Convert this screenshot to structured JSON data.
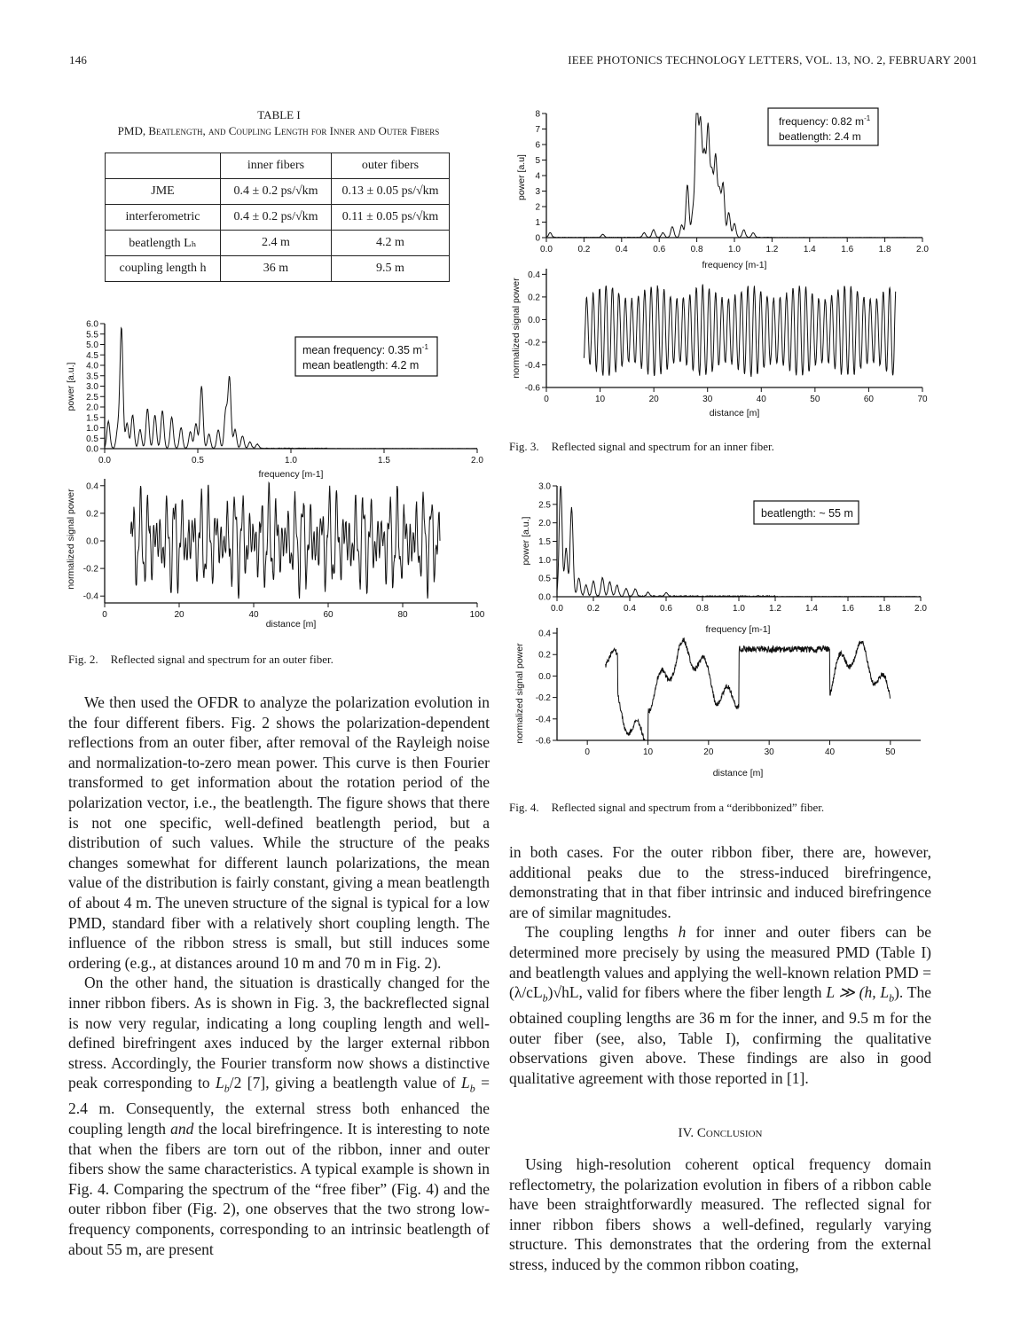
{
  "header": {
    "page_number": "146",
    "journal": "IEEE PHOTONICS TECHNOLOGY LETTERS, VOL. 13, NO. 2, FEBRUARY 2001"
  },
  "table1": {
    "label": "TABLE I",
    "caption": "PMD, Beatlength, and Coupling Length for Inner and Outer Fibers",
    "col_headers": [
      "",
      "inner fibers",
      "outer fibers"
    ],
    "rows": [
      [
        "JME",
        "0.4 ± 0.2 ps/√km",
        "0.13 ± 0.05 ps/√km"
      ],
      [
        "interferometric",
        "0.4 ± 0.2 ps/√km",
        "0.11 ± 0.05 ps/√km"
      ],
      [
        "beatlength Lₕ",
        "2.4 m",
        "4.2 m"
      ],
      [
        "coupling length h",
        "36 m",
        "9.5 m"
      ]
    ]
  },
  "fig2": {
    "caption_num": "Fig. 2.",
    "caption": "Reflected signal and spectrum for an outer fiber.",
    "legend_line1": "mean frequency: 0.35 m",
    "legend_line2": "mean beatlength: 4.2 m",
    "legend_sup": "-1"
  },
  "fig3": {
    "caption_num": "Fig. 3.",
    "caption": "Reflected signal and spectrum for an inner fiber.",
    "legend_line1": "frequency: 0.82 m",
    "legend_line2": "beatlength: 2.4 m",
    "legend_sup": "-1"
  },
  "fig4": {
    "caption_num": "Fig. 4.",
    "caption": "Reflected signal and spectrum from a “deribbonized” fiber.",
    "legend_line1": "beatlength: ~ 55 m"
  },
  "chart_data": [
    {
      "id": "fig2-spectrum",
      "type": "line",
      "xlabel": "frequency [m-1]",
      "ylabel": "power [a.u.]",
      "xlim": [
        0,
        2.0
      ],
      "ylim": [
        0,
        6.0
      ],
      "xticks": [
        "0.0",
        "0.5",
        "1.0",
        "1.5",
        "2.0"
      ],
      "yticks": [
        "0.0",
        "0.5",
        "1.0",
        "1.5",
        "2.0",
        "2.5",
        "3.0",
        "3.5",
        "4.0",
        "4.5",
        "5.0",
        "5.5",
        "6.0"
      ],
      "peaks_x": [
        0.02,
        0.07,
        0.09,
        0.12,
        0.15,
        0.19,
        0.23,
        0.27,
        0.31,
        0.36,
        0.41,
        0.46,
        0.49,
        0.52,
        0.56,
        0.61,
        0.65,
        0.67,
        0.7,
        0.74,
        0.78,
        0.82
      ],
      "peaks_y": [
        1.3,
        0.9,
        5.8,
        1.2,
        1.6,
        0.9,
        1.9,
        1.6,
        1.8,
        1.5,
        1.0,
        0.8,
        1.2,
        3.0,
        0.7,
        0.9,
        1.8,
        3.4,
        0.9,
        0.6,
        0.3,
        0.2
      ]
    },
    {
      "id": "fig2-signal",
      "type": "line",
      "xlabel": "distance [m]",
      "ylabel": "normalized signal power",
      "xlim": [
        0,
        100
      ],
      "ylim": [
        -0.45,
        0.45
      ],
      "xticks": [
        "0",
        "20",
        "40",
        "60",
        "80",
        "100"
      ],
      "yticks": [
        "-0.4",
        "-0.2",
        "0.0",
        "0.2",
        "0.4"
      ],
      "x_range": [
        7,
        90
      ]
    },
    {
      "id": "fig3-spectrum",
      "type": "line",
      "xlabel": "frequency [m-1]",
      "ylabel": "power [a.u]",
      "xlim": [
        0,
        2.0
      ],
      "ylim": [
        0,
        8
      ],
      "xticks": [
        "0.0",
        "0.2",
        "0.4",
        "0.6",
        "0.8",
        "1.0",
        "1.2",
        "1.4",
        "1.6",
        "1.8",
        "2.0"
      ],
      "yticks": [
        "0",
        "1",
        "2",
        "3",
        "4",
        "5",
        "6",
        "7",
        "8"
      ],
      "peaks_x": [
        0.02,
        0.3,
        0.52,
        0.57,
        0.62,
        0.67,
        0.72,
        0.75,
        0.78,
        0.8,
        0.82,
        0.84,
        0.86,
        0.88,
        0.9,
        0.92,
        0.94,
        0.97,
        1.0,
        1.05,
        1.1
      ],
      "peaks_y": [
        0.3,
        0.2,
        0.3,
        0.5,
        0.3,
        0.7,
        0.8,
        3.4,
        1.7,
        8.7,
        7.2,
        5.1,
        7.0,
        4.0,
        5.1,
        2.9,
        3.4,
        1.6,
        0.9,
        0.5,
        0.3
      ]
    },
    {
      "id": "fig3-signal",
      "type": "line",
      "xlabel": "distance [m]",
      "ylabel": "normalized signal power",
      "xlim": [
        0,
        70
      ],
      "ylim": [
        -0.6,
        0.45
      ],
      "xticks": [
        "0",
        "10",
        "20",
        "30",
        "40",
        "50",
        "60",
        "70"
      ],
      "yticks": [
        "-0.6",
        "-0.4",
        "-0.2",
        "0.0",
        "0.2",
        "0.4"
      ],
      "x_range": [
        7,
        65
      ],
      "period_m": 1.2
    },
    {
      "id": "fig4-spectrum",
      "type": "line",
      "xlabel": "frequency [m-1]",
      "ylabel": "power [a.u.]",
      "xlim": [
        0,
        2.0
      ],
      "ylim": [
        0,
        3.0
      ],
      "xticks": [
        "0.0",
        "0.2",
        "0.4",
        "0.6",
        "0.8",
        "1.0",
        "1.2",
        "1.4",
        "1.6",
        "1.8",
        "2.0"
      ],
      "yticks": [
        "0.0",
        "0.5",
        "1.0",
        "1.5",
        "2.0",
        "2.5",
        "3.0"
      ],
      "peaks_x": [
        0.02,
        0.05,
        0.08,
        0.12,
        0.16,
        0.2,
        0.25,
        0.29,
        0.33,
        0.38,
        0.43,
        0.5,
        0.6
      ],
      "peaks_y": [
        3.05,
        1.3,
        2.4,
        0.5,
        0.3,
        0.4,
        0.5,
        0.4,
        0.3,
        0.2,
        0.2,
        0.1,
        0.1
      ]
    },
    {
      "id": "fig4-signal",
      "type": "line",
      "xlabel": "distance [m]",
      "ylabel": "normalized signal power",
      "xlim": [
        -5,
        55
      ],
      "ylim": [
        -0.6,
        0.45
      ],
      "xticks": [
        "0",
        "10",
        "20",
        "30",
        "40",
        "50"
      ],
      "yticks": [
        "-0.6",
        "-0.4",
        "-0.2",
        "0.0",
        "0.2",
        "0.4"
      ],
      "x_range": [
        3,
        50
      ]
    }
  ],
  "body": {
    "left_p1": "We then used the OFDR to analyze the polarization evolution in the four different fibers. Fig. 2 shows the polarization-dependent reflections from an outer fiber, after removal of the Rayleigh noise and normalization-to-zero mean power. This curve is then Fourier transformed to get information about the rotation period of the polarization vector, i.e., the beatlength. The figure shows that there is not one specific, well-defined beatlength period, but a distribution of such values. While the structure of the peaks changes somewhat for different launch polarizations, the mean value of the distribution is fairly constant, giving a mean beatlength of about 4 m. The uneven structure of the signal is typical for a low PMD, standard fiber with a relatively short coupling length. The influence of the ribbon stress is small, but still induces some ordering (e.g., at distances around 10 m and 70 m in Fig. 2).",
    "left_p2a": "On the other hand, the situation is drastically changed for the inner ribbon fibers. As is shown in Fig. 3, the backreflected signal is now very regular, indicating a long coupling length and well-defined birefringent axes induced by the larger external ribbon stress. Accordingly, the Fourier transform now shows a distinctive peak corresponding to ",
    "left_p2_m1": "L",
    "left_p2_m1sub": "b",
    "left_p2_m1b": "/2",
    "left_p2b": " [7], giving a beatlength value of ",
    "left_p2_m2": "L",
    "left_p2_m2sub": "b",
    "left_p2_m2b": " = 2.4",
    "left_p2c": " m. Consequently, the external stress both enhanced the coupling length ",
    "left_p2_and": "and",
    "left_p2d": " the local birefringence. It is interesting to note that when the fibers are torn out of the ribbon, inner and outer fibers show the same characteristics. A typical example is shown in Fig. 4. Comparing the spectrum of the “free fiber” (Fig. 4) and the outer ribbon fiber (Fig. 2), one observes that the two strong low-frequency components, corresponding to an intrinsic beatlength of about 55 m, are present",
    "right_p1": "in both cases. For the outer ribbon fiber, there are, however, additional peaks due to the stress-induced birefringence, demonstrating that in that fiber intrinsic and induced birefringence are of similar magnitudes.",
    "right_p2a": "The coupling lengths ",
    "right_p2_h": "h",
    "right_p2b": " for inner and outer fibers can be determined more precisely by using the measured PMD (Table I) and beatlength values and applying the well-known relation ",
    "right_p2_rel": "PMD = (λ/cL",
    "right_p2_relsub": "b",
    "right_p2_rel2": ")√hL",
    "right_p2c": ", valid for fibers where the fiber length ",
    "right_p2_len": "L ≫ (h, L",
    "right_p2_lensub": "b",
    "right_p2_len2": ")",
    "right_p2d": ". The obtained coupling lengths are 36 m for the inner, and 9.5 m for the outer fiber (see, also, Table I), confirming the qualitative observations given above. These findings are also in good qualitative agreement with those reported in [1].",
    "section_title": "IV. Conclusion",
    "right_p3": "Using high-resolution coherent optical frequency domain reflectometry, the polarization evolution in fibers of a ribbon cable have been straightforwardly measured. The reflected signal for inner ribbon fibers shows a well-defined, regularly varying structure. This demonstrates that the ordering from the external stress, induced by the common ribbon coating,"
  }
}
